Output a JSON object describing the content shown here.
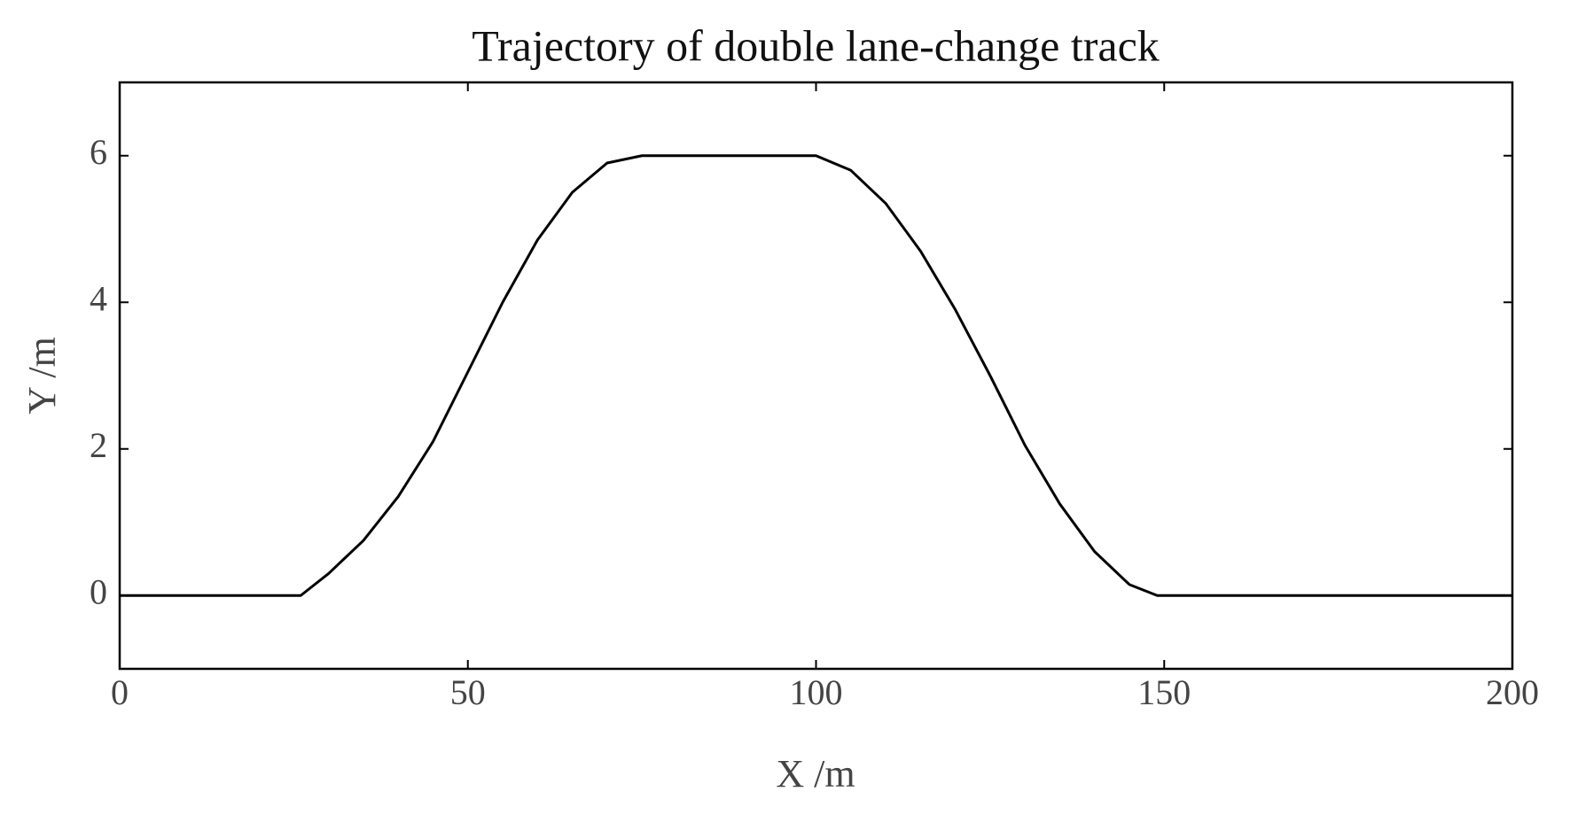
{
  "chart_data": {
    "type": "line",
    "title": "Trajectory of double lane-change track",
    "x_label": "X /m",
    "y_label": "Y /m",
    "x": [
      0,
      26,
      30,
      35,
      40,
      45,
      50,
      55,
      60,
      65,
      70,
      75,
      100,
      105,
      110,
      115,
      120,
      125,
      130,
      135,
      140,
      145,
      149,
      200
    ],
    "series": [
      {
        "color": "#000000",
        "values": [
          0,
          0,
          0.3,
          0.75,
          1.35,
          2.1,
          3.05,
          4.0,
          4.85,
          5.5,
          5.9,
          6,
          6,
          5.8,
          5.35,
          4.7,
          3.9,
          3.0,
          2.05,
          1.25,
          0.6,
          0.15,
          0,
          0
        ]
      }
    ],
    "xlim": [
      0,
      200
    ],
    "xticks": [
      0,
      50,
      100,
      150,
      200
    ],
    "ylim": [
      -1,
      7
    ],
    "yticks": [
      0,
      2,
      4,
      6
    ],
    "grid": false
  }
}
